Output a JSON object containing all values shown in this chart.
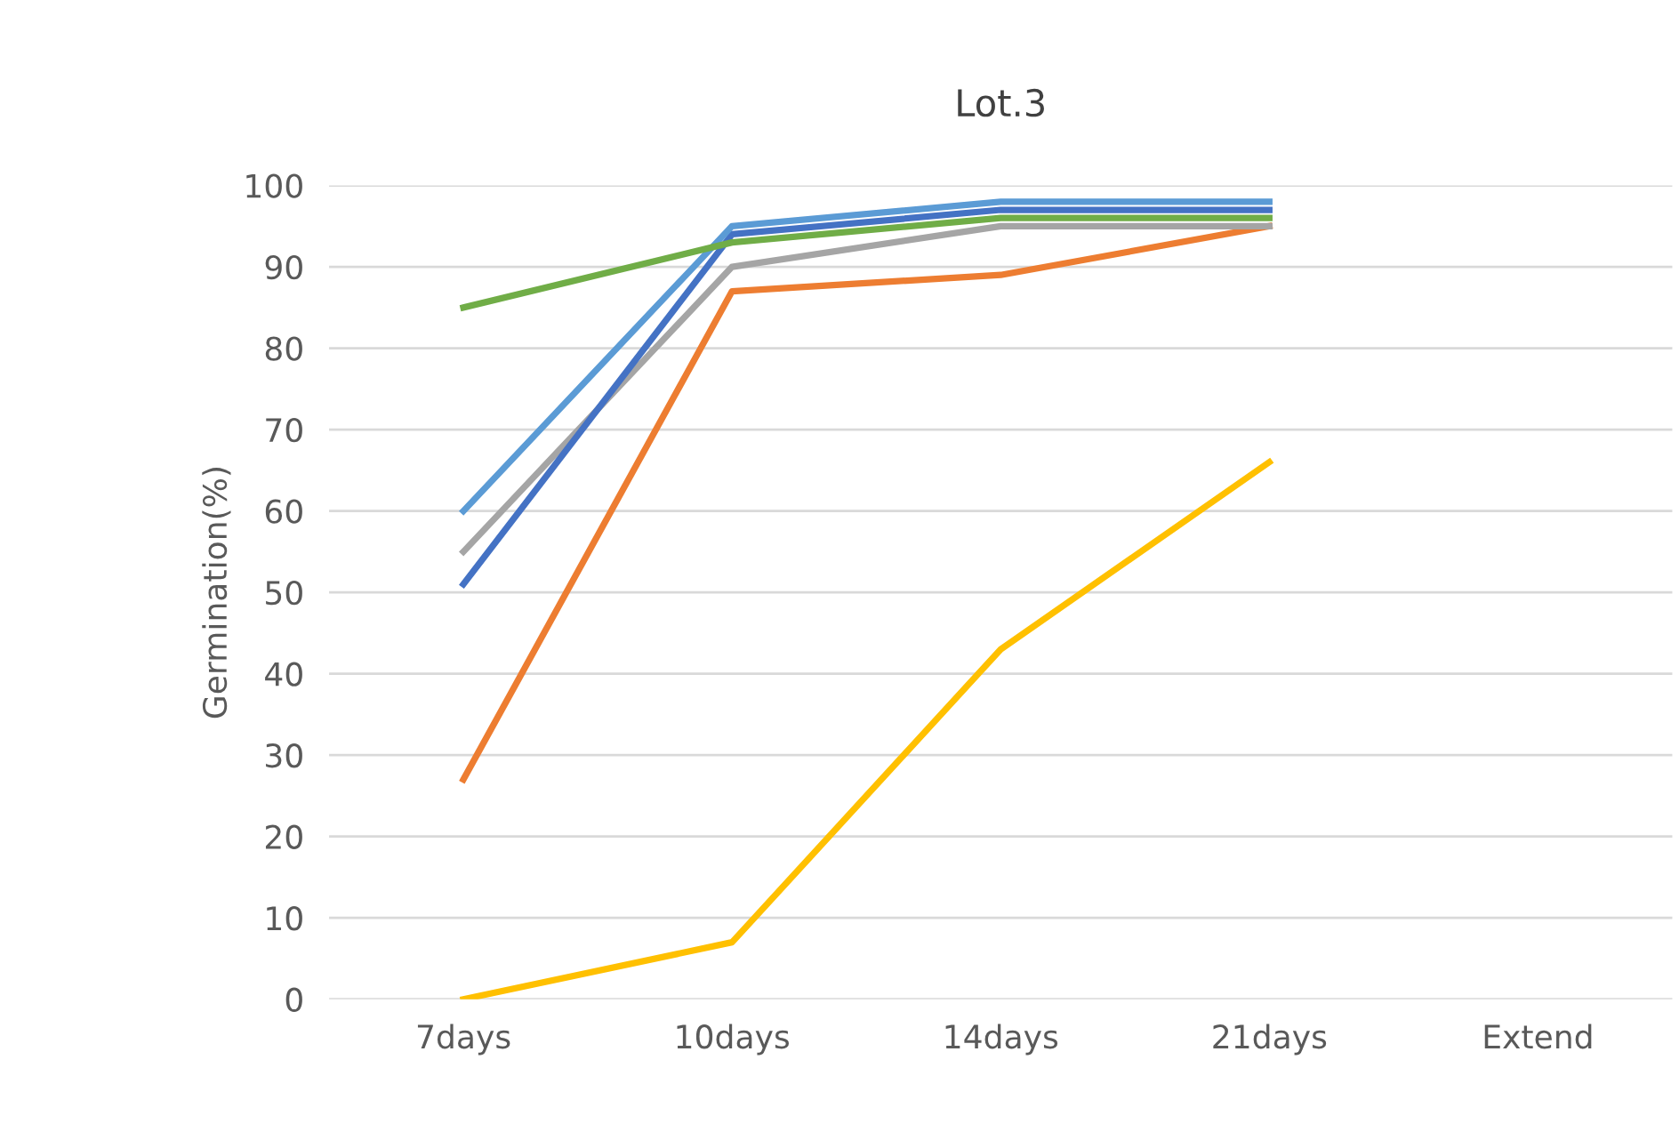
{
  "chart_data": {
    "type": "line",
    "title": "Lot.3",
    "ylabel": "Germination(%)",
    "categories": [
      "7days",
      "10days",
      "14days",
      "21days",
      "Extend"
    ],
    "series": [
      {
        "color": "#ffc000",
        "values": [
          0,
          7,
          43,
          66,
          null
        ]
      },
      {
        "color": "#ed7d31",
        "values": [
          27,
          87,
          89,
          95,
          null
        ]
      },
      {
        "color": "#a5a5a5",
        "values": [
          55,
          90,
          95,
          95,
          null
        ]
      },
      {
        "color": "#4472c4",
        "values": [
          51,
          94,
          97,
          97,
          null
        ]
      },
      {
        "color": "#5b9bd5",
        "values": [
          60,
          95,
          98,
          98,
          null
        ]
      },
      {
        "color": "#70ad47",
        "values": [
          85,
          93,
          96,
          96,
          null
        ]
      }
    ],
    "ylim": [
      0,
      100
    ],
    "yticks": [
      0,
      10,
      20,
      30,
      40,
      50,
      60,
      70,
      80,
      90,
      100
    ],
    "grid": "y",
    "legend": false,
    "marker": "none",
    "line_style": "solid"
  }
}
